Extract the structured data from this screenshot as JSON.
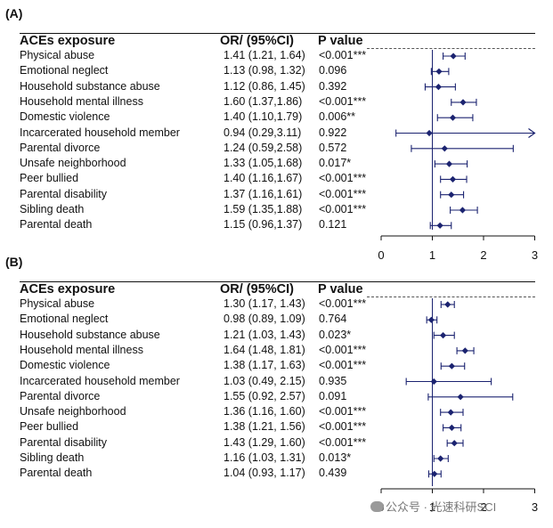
{
  "panels": [
    {
      "label": "(A)",
      "headers": {
        "exposure": "ACEs exposure",
        "or": "OR/ (95%CI)",
        "p": "P value"
      },
      "rows": [
        {
          "exposure": "Physical abuse",
          "or_text": "1.41 (1.21, 1.64)",
          "p_text": "<0.001***"
        },
        {
          "exposure": "Emotional neglect",
          "or_text": "1.13 (0.98, 1.32)",
          "p_text": "0.096"
        },
        {
          "exposure": "Household substance abuse",
          "or_text": "1.12 (0.86, 1.45)",
          "p_text": "0.392"
        },
        {
          "exposure": "Household mental illness",
          "or_text": "1.60 (1.37,1.86)",
          "p_text": "<0.001***"
        },
        {
          "exposure": "Domestic violence",
          "or_text": "1.40 (1.10,1.79)",
          "p_text": "0.006**"
        },
        {
          "exposure": "Incarcerated household member",
          "or_text": "0.94 (0.29,3.11)",
          "p_text": "0.922"
        },
        {
          "exposure": "Parental divorce",
          "or_text": "1.24 (0.59,2.58)",
          "p_text": "0.572"
        },
        {
          "exposure": "Unsafe neighborhood",
          "or_text": "1.33 (1.05,1.68)",
          "p_text": "0.017*"
        },
        {
          "exposure": "Peer bullied",
          "or_text": "1.40 (1.16,1.67)",
          "p_text": "<0.001***"
        },
        {
          "exposure": "Parental disability",
          "or_text": "1.37 (1.16,1.61)",
          "p_text": "<0.001***"
        },
        {
          "exposure": "Sibling death",
          "or_text": "1.59 (1.35,1.88)",
          "p_text": "<0.001***"
        },
        {
          "exposure": "Parental death",
          "or_text": "1.15 (0.96,1.37)",
          "p_text": "0.121"
        }
      ]
    },
    {
      "label": "(B)",
      "headers": {
        "exposure": "ACEs exposure",
        "or": "OR/ (95%CI)",
        "p": "P value"
      },
      "rows": [
        {
          "exposure": "Physical abuse",
          "or_text": "1.30 (1.17, 1.43)",
          "p_text": "<0.001***"
        },
        {
          "exposure": "Emotional neglect",
          "or_text": "0.98 (0.89, 1.09)",
          "p_text": "0.764"
        },
        {
          "exposure": "Household substance abuse",
          "or_text": "1.21 (1.03, 1.43)",
          "p_text": "0.023*"
        },
        {
          "exposure": "Household mental illness",
          "or_text": "1.64 (1.48, 1.81)",
          "p_text": "<0.001***"
        },
        {
          "exposure": "Domestic violence",
          "or_text": "1.38 (1.17, 1.63)",
          "p_text": "<0.001***"
        },
        {
          "exposure": "Incarcerated household member",
          "or_text": "1.03 (0.49, 2.15)",
          "p_text": "0.935"
        },
        {
          "exposure": "Parental divorce",
          "or_text": "1.55 (0.92, 2.57)",
          "p_text": "0.091"
        },
        {
          "exposure": "Unsafe neighborhood",
          "or_text": "1.36 (1.16, 1.60)",
          "p_text": "<0.001***"
        },
        {
          "exposure": "Peer bullied",
          "or_text": "1.38 (1.21, 1.56)",
          "p_text": "<0.001***"
        },
        {
          "exposure": "Parental disability",
          "or_text": "1.43 (1.29, 1.60)",
          "p_text": "<0.001***"
        },
        {
          "exposure": "Sibling death",
          "or_text": "1.16 (1.03, 1.31)",
          "p_text": "0.013*"
        },
        {
          "exposure": "Parental death",
          "or_text": "1.04 (0.93, 1.17)",
          "p_text": "0.439"
        }
      ]
    }
  ],
  "chart_data": [
    {
      "type": "forest",
      "title": "(A)",
      "categories": [
        "Physical abuse",
        "Emotional neglect",
        "Household substance abuse",
        "Household mental illness",
        "Domestic violence",
        "Incarcerated household member",
        "Parental divorce",
        "Unsafe neighborhood",
        "Peer bullied",
        "Parental disability",
        "Sibling death",
        "Parental death"
      ],
      "or": [
        1.41,
        1.13,
        1.12,
        1.6,
        1.4,
        0.94,
        1.24,
        1.33,
        1.4,
        1.37,
        1.59,
        1.15
      ],
      "ci_low": [
        1.21,
        0.98,
        0.86,
        1.37,
        1.1,
        0.29,
        0.59,
        1.05,
        1.16,
        1.16,
        1.35,
        0.96
      ],
      "ci_high": [
        1.64,
        1.32,
        1.45,
        1.86,
        1.79,
        3.11,
        2.58,
        1.68,
        1.67,
        1.61,
        1.88,
        1.37
      ],
      "p_values": [
        "<0.001***",
        "0.096",
        "0.392",
        "<0.001***",
        "0.006**",
        "0.922",
        "0.572",
        "0.017*",
        "<0.001***",
        "<0.001***",
        "<0.001***",
        "0.121"
      ],
      "xlim": [
        0,
        3
      ],
      "xticks": [
        0,
        1,
        2,
        3
      ],
      "reference_line": 1,
      "clipped_ci_arrow": [
        false,
        false,
        false,
        false,
        false,
        true,
        false,
        false,
        false,
        false,
        false,
        false
      ]
    },
    {
      "type": "forest",
      "title": "(B)",
      "categories": [
        "Physical abuse",
        "Emotional neglect",
        "Household substance abuse",
        "Household mental illness",
        "Domestic violence",
        "Incarcerated household member",
        "Parental divorce",
        "Unsafe neighborhood",
        "Peer bullied",
        "Parental disability",
        "Sibling death",
        "Parental death"
      ],
      "or": [
        1.3,
        0.98,
        1.21,
        1.64,
        1.38,
        1.03,
        1.55,
        1.36,
        1.38,
        1.43,
        1.16,
        1.04
      ],
      "ci_low": [
        1.17,
        0.89,
        1.03,
        1.48,
        1.17,
        0.49,
        0.92,
        1.16,
        1.21,
        1.29,
        1.03,
        0.93
      ],
      "ci_high": [
        1.43,
        1.09,
        1.43,
        1.81,
        1.63,
        2.15,
        2.57,
        1.6,
        1.56,
        1.6,
        1.31,
        1.17
      ],
      "p_values": [
        "<0.001***",
        "0.764",
        "0.023*",
        "<0.001***",
        "<0.001***",
        "0.935",
        "0.091",
        "<0.001***",
        "<0.001***",
        "<0.001***",
        "0.013*",
        "0.439"
      ],
      "xlim": [
        0,
        3
      ],
      "xticks": [
        0,
        1,
        2,
        3
      ],
      "reference_line": 1,
      "clipped_ci_arrow": [
        false,
        false,
        false,
        false,
        false,
        false,
        false,
        false,
        false,
        false,
        false,
        false
      ]
    }
  ],
  "style": {
    "marker_color": "#1b2370",
    "line_color": "#1b2370",
    "text_color": "#111111",
    "ref_line_color": "#1b2370"
  },
  "watermark": {
    "text": "公众号 · 光速科研SCI",
    "icon": "wechat-icon"
  }
}
